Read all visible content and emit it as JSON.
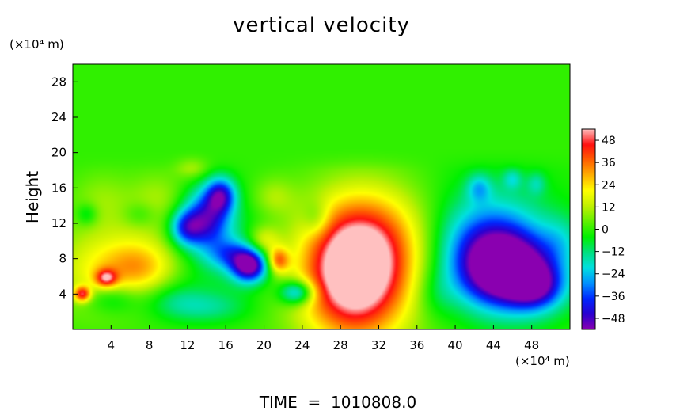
{
  "chart_data": {
    "type": "heatmap",
    "title": "vertical velocity",
    "xlabel": "",
    "ylabel": "Height",
    "x_unit": "(×10⁴ m)",
    "y_unit": "(×10⁴ m)",
    "xlim": [
      0,
      52
    ],
    "ylim": [
      0,
      30
    ],
    "x_ticks": [
      4,
      8,
      12,
      16,
      20,
      24,
      28,
      32,
      36,
      40,
      44,
      48
    ],
    "y_ticks": [
      4,
      8,
      12,
      16,
      20,
      24,
      28
    ],
    "colorbar": {
      "ticks": [
        48,
        36,
        24,
        12,
        0,
        -12,
        -24,
        -36,
        -48
      ],
      "range": [
        -54,
        54
      ],
      "palette": [
        "#8a00b0",
        "#2a00d0",
        "#0028ff",
        "#0090ff",
        "#00e0e0",
        "#00e080",
        "#00f000",
        "#60f000",
        "#c0f000",
        "#ffff00",
        "#ffb000",
        "#ff6000",
        "#ff1010",
        "#ffc0c0"
      ]
    },
    "background_value": 0,
    "features": [
      {
        "x": 29.5,
        "y": 6.2,
        "sx": 3.6,
        "sy": 4.8,
        "value": 58
      },
      {
        "x": 31.5,
        "y": 10.5,
        "sx": 4.5,
        "sy": 4.2,
        "value": 20
      },
      {
        "x": 30.5,
        "y": 5,
        "sx": 6.5,
        "sy": 6.5,
        "value": 10
      },
      {
        "x": 45.5,
        "y": 6.5,
        "sx": 3.3,
        "sy": 2.8,
        "value": -58
      },
      {
        "x": 43.5,
        "y": 9.5,
        "sx": 3.6,
        "sy": 3.6,
        "value": -30
      },
      {
        "x": 48.5,
        "y": 4.8,
        "sx": 2.0,
        "sy": 1.8,
        "value": -30
      },
      {
        "x": 44,
        "y": 9,
        "sx": 6,
        "sy": 6,
        "value": -10
      },
      {
        "x": 18.5,
        "y": 7.2,
        "sx": 1.3,
        "sy": 1.3,
        "value": -55
      },
      {
        "x": 14,
        "y": 12.5,
        "sx": 1.7,
        "sy": 2.3,
        "value": -40
      },
      {
        "x": 15.5,
        "y": 15.2,
        "sx": 1.1,
        "sy": 1.4,
        "value": -38
      },
      {
        "x": 11.8,
        "y": 11.5,
        "sx": 1.2,
        "sy": 1.4,
        "value": -30
      },
      {
        "x": 23.5,
        "y": 4.2,
        "sx": 1.3,
        "sy": 1.0,
        "value": -36
      },
      {
        "x": 16.5,
        "y": 8.5,
        "sx": 1.6,
        "sy": 1.2,
        "value": -22
      },
      {
        "x": 15,
        "y": 9,
        "sx": 4,
        "sy": 4,
        "value": -12
      },
      {
        "x": 21.5,
        "y": 7.8,
        "sx": 0.8,
        "sy": 1.0,
        "value": 32
      },
      {
        "x": 20,
        "y": 10,
        "sx": 1.2,
        "sy": 1.2,
        "value": 18
      },
      {
        "x": 7,
        "y": 7,
        "sx": 2.6,
        "sy": 2.0,
        "value": 20
      },
      {
        "x": 6.5,
        "y": 9,
        "sx": 5,
        "sy": 4,
        "value": 12
      },
      {
        "x": 3.5,
        "y": 5.8,
        "sx": 0.8,
        "sy": 0.7,
        "value": 34
      },
      {
        "x": 1,
        "y": 4,
        "sx": 0.6,
        "sy": 0.6,
        "value": 40
      },
      {
        "x": 2,
        "y": 6,
        "sx": 3,
        "sy": 3,
        "value": 12
      },
      {
        "x": 4,
        "y": 3.5,
        "sx": 2,
        "sy": 1.2,
        "value": -14
      },
      {
        "x": 10.5,
        "y": 3.5,
        "sx": 2.2,
        "sy": 1.5,
        "value": -10
      },
      {
        "x": 14,
        "y": 2.5,
        "sx": 3,
        "sy": 1.2,
        "value": -12
      },
      {
        "x": 25.5,
        "y": 12.5,
        "sx": 1.0,
        "sy": 1.4,
        "value": -12
      },
      {
        "x": 21,
        "y": 15,
        "sx": 1.5,
        "sy": 1.5,
        "value": 10
      },
      {
        "x": 3,
        "y": 15,
        "sx": 2,
        "sy": 2,
        "value": 6
      },
      {
        "x": 9,
        "y": 15,
        "sx": 2,
        "sy": 2,
        "value": 8
      },
      {
        "x": 38,
        "y": 4,
        "sx": 1.5,
        "sy": 2,
        "value": -8
      },
      {
        "x": 51,
        "y": 10,
        "sx": 1.5,
        "sy": 2,
        "value": -10
      },
      {
        "x": 12.5,
        "y": 18.5,
        "sx": 1.2,
        "sy": 1.0,
        "value": 12
      },
      {
        "x": 42.5,
        "y": 16,
        "sx": 0.9,
        "sy": 1.1,
        "value": -18
      },
      {
        "x": 46,
        "y": 17,
        "sx": 0.7,
        "sy": 0.8,
        "value": -14
      },
      {
        "x": 48.5,
        "y": 16.5,
        "sx": 0.7,
        "sy": 0.9,
        "value": -12
      },
      {
        "x": 1.5,
        "y": 13,
        "sx": 0.8,
        "sy": 0.9,
        "value": -12
      },
      {
        "x": 7,
        "y": 13,
        "sx": 1.2,
        "sy": 1.0,
        "value": -8
      }
    ],
    "footer": "TIME  =  1010808.0"
  }
}
